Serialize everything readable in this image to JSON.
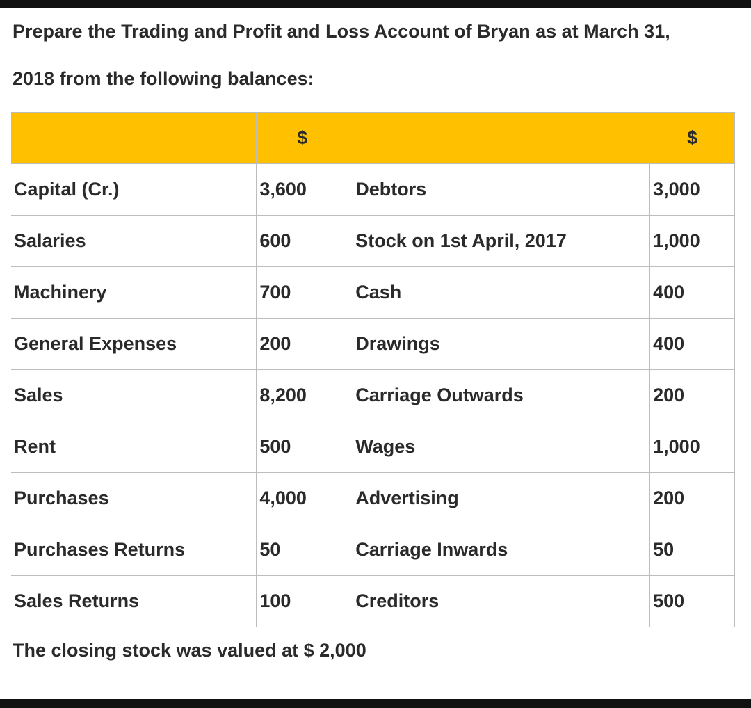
{
  "question": {
    "line1": "Prepare the Trading and Profit and Loss Account of Bryan as at March 31,",
    "line2": "2018 from the following balances:"
  },
  "table": {
    "header": {
      "left_currency": "$",
      "right_currency": "$"
    },
    "rows": [
      {
        "left_item": "Capital (Cr.)",
        "left_amount": "3,600",
        "right_item": "Debtors",
        "right_amount": "3,000"
      },
      {
        "left_item": "Salaries",
        "left_amount": "600",
        "right_item": "Stock on 1st April, 2017",
        "right_amount": "1,000"
      },
      {
        "left_item": "Machinery",
        "left_amount": "700",
        "right_item": "Cash",
        "right_amount": "400"
      },
      {
        "left_item": "General Expenses",
        "left_amount": "200",
        "right_item": "Drawings",
        "right_amount": "400"
      },
      {
        "left_item": "Sales",
        "left_amount": "8,200",
        "right_item": "Carriage Outwards",
        "right_amount": "200"
      },
      {
        "left_item": "Rent",
        "left_amount": "500",
        "right_item": "Wages",
        "right_amount": "1,000"
      },
      {
        "left_item": "Purchases",
        "left_amount": "4,000",
        "right_item": "Advertising",
        "right_amount": "200"
      },
      {
        "left_item": "Purchases Returns",
        "left_amount": "50",
        "right_item": "Carriage Inwards",
        "right_amount": "50"
      },
      {
        "left_item": "Sales Returns",
        "left_amount": "100",
        "right_item": "Creditors",
        "right_amount": "500"
      }
    ]
  },
  "note": "The closing stock was valued at $ 2,000",
  "colors": {
    "header_fill": "#ffc000",
    "grid_line": "#bdbdbd",
    "text": "#2a2a2a"
  }
}
